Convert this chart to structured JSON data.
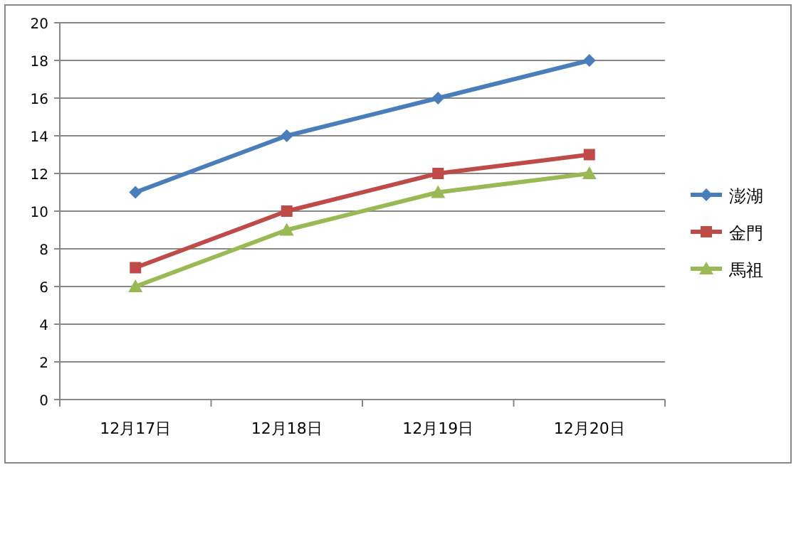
{
  "chart_data": {
    "type": "line",
    "categories": [
      "12月17日",
      "12月18日",
      "12月19日",
      "12月20日"
    ],
    "series": [
      {
        "name": "澎湖",
        "color": "#4a7ebb",
        "marker": "diamond",
        "values": [
          11,
          14,
          16,
          18
        ]
      },
      {
        "name": "金門",
        "color": "#be4b48",
        "marker": "square",
        "values": [
          7,
          10,
          12,
          13
        ]
      },
      {
        "name": "馬祖",
        "color": "#98b954",
        "marker": "triangle",
        "values": [
          6,
          9,
          11,
          12
        ]
      }
    ],
    "ylim": [
      0,
      20
    ],
    "yticks": [
      0,
      2,
      4,
      6,
      8,
      10,
      12,
      14,
      16,
      18,
      20
    ],
    "grid": "y",
    "legend": "right"
  }
}
